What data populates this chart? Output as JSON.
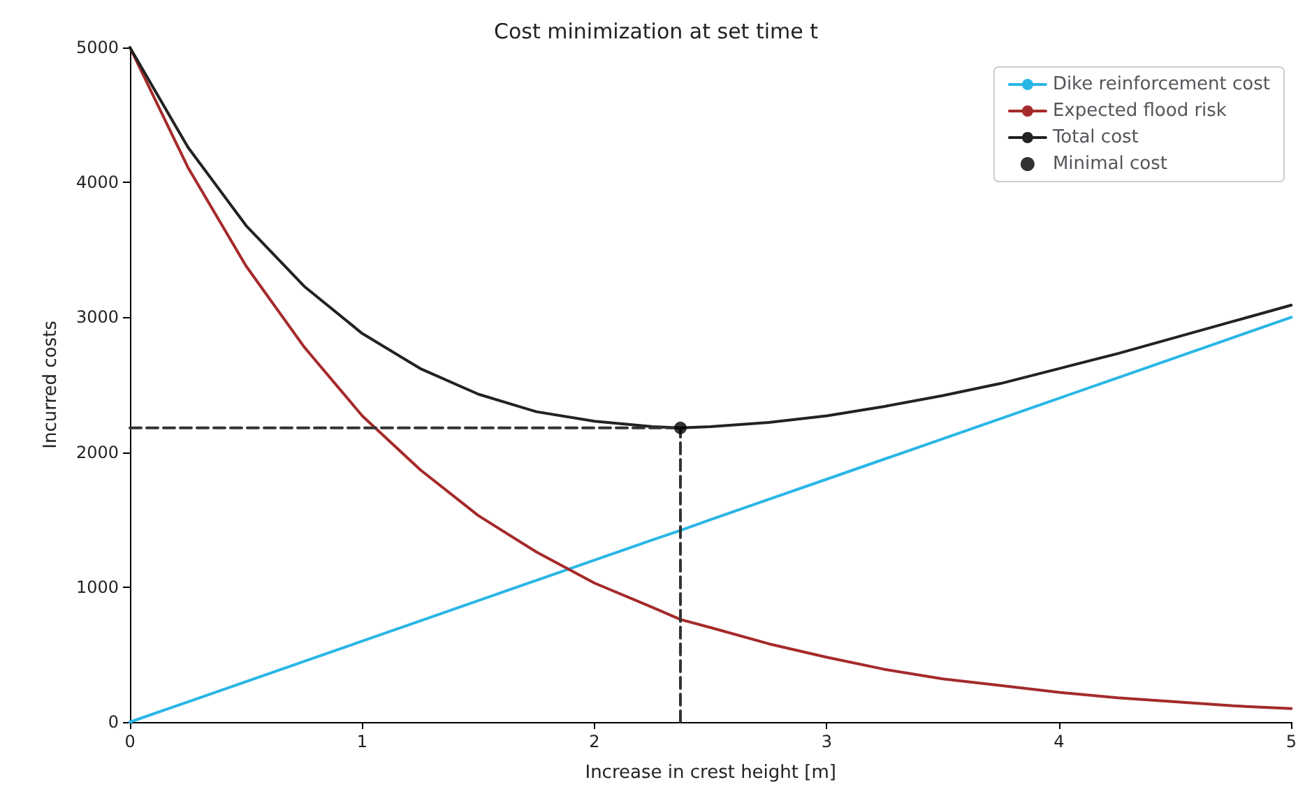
{
  "chart_data": {
    "type": "line",
    "title": "Cost minimization at set time t",
    "xlabel": "Increase in crest height [m]",
    "ylabel": "Incurred costs",
    "xlim": [
      0,
      5
    ],
    "ylim": [
      0,
      5000
    ],
    "xticks": [
      0,
      1,
      2,
      3,
      4,
      5
    ],
    "yticks": [
      0,
      1000,
      2000,
      3000,
      4000,
      5000
    ],
    "grid": false,
    "legend": "top right",
    "marker": "none",
    "line_style": "solid",
    "x": [
      0,
      0.25,
      0.5,
      0.75,
      1,
      1.25,
      1.5,
      1.75,
      2,
      2.25,
      2.37,
      2.5,
      2.75,
      3,
      3.25,
      3.5,
      3.75,
      4,
      4.25,
      4.5,
      4.75,
      5
    ],
    "series": [
      {
        "name": "Dike reinforcement cost",
        "color": "#29b6e6",
        "values": [
          0,
          150,
          300,
          450,
          600,
          750,
          900,
          1050,
          1200,
          1350,
          1420,
          1500,
          1650,
          1800,
          1950,
          2100,
          2250,
          2400,
          2550,
          2700,
          2850,
          3000
        ]
      },
      {
        "name": "Expected flood risk",
        "color": "#a52a2a",
        "values": [
          5000,
          4110,
          3380,
          2780,
          2270,
          1870,
          1530,
          1260,
          1030,
          850,
          760,
          700,
          580,
          480,
          390,
          320,
          270,
          220,
          180,
          150,
          120,
          100
        ]
      },
      {
        "name": "Total cost",
        "color": "#222222",
        "values": [
          5000,
          4260,
          3680,
          3230,
          2880,
          2620,
          2430,
          2300,
          2230,
          2190,
          2180,
          2190,
          2220,
          2270,
          2340,
          2420,
          2510,
          2620,
          2730,
          2850,
          2970,
          3090
        ]
      },
      {
        "name": "Minimal cost",
        "type": "scatter",
        "marker": "circle",
        "color": "#000000",
        "values": [
          null,
          null,
          null,
          null,
          null,
          null,
          null,
          null,
          null,
          null,
          2180,
          null,
          null,
          null,
          null,
          null,
          null,
          null,
          null,
          null,
          null,
          null
        ]
      },
      {
        "type": "line",
        "line_style": "dashed",
        "color": "#333333",
        "values": [
          2180,
          2180,
          2180,
          2180,
          2180,
          2180,
          2180,
          2180,
          2180,
          2180,
          2180,
          null,
          null,
          null,
          null,
          null,
          null,
          null,
          null,
          null,
          null,
          null
        ]
      },
      {
        "type": "line",
        "line_style": "dashed",
        "color": "#333333",
        "x": [
          2.37,
          2.37
        ],
        "values": [
          0,
          2180
        ]
      }
    ]
  }
}
